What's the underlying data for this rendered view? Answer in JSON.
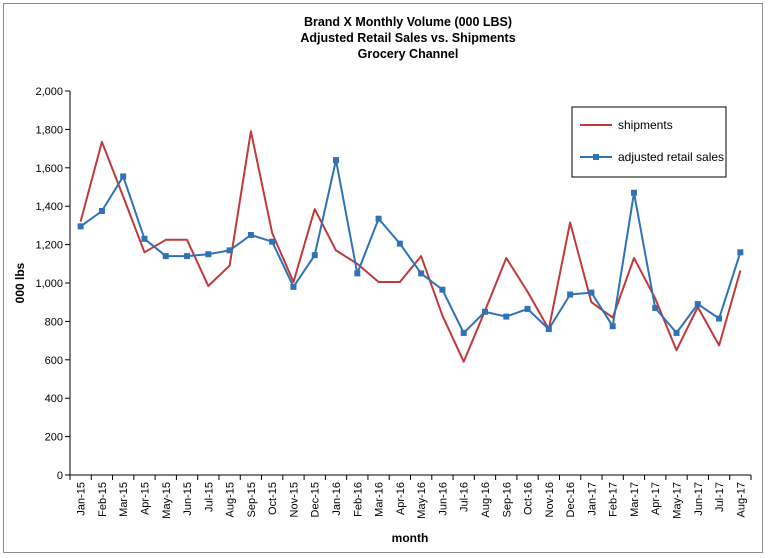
{
  "chart_data": {
    "type": "line",
    "title": [
      "Brand X Monthly Volume (000 LBS)",
      "Adjusted Retail Sales vs. Shipments",
      "Grocery Channel"
    ],
    "xlabel": "month",
    "ylabel": "000 lbs",
    "ylim": [
      0,
      2000
    ],
    "yticks": [
      "0",
      "200",
      "400",
      "600",
      "800",
      "1,000",
      "1,200",
      "1,400",
      "1,600",
      "1,800",
      "2,000"
    ],
    "grid": false,
    "legend_position": "top-right",
    "categories": [
      "Jan-15",
      "Feb-15",
      "Mar-15",
      "Apr-15",
      "May-15",
      "Jun-15",
      "Jul-15",
      "Aug-15",
      "Sep-15",
      "Oct-15",
      "Nov-15",
      "Dec-15",
      "Jan-16",
      "Feb-16",
      "Mar-16",
      "Apr-16",
      "May-16",
      "Jun-16",
      "Jul-16",
      "Aug-16",
      "Sep-16",
      "Oct-16",
      "Nov-16",
      "Dec-16",
      "Jan-17",
      "Feb-17",
      "Mar-17",
      "Apr-17",
      "May-17",
      "Jun-17",
      "Jul-17",
      "Aug-17"
    ],
    "series": [
      {
        "name": "shipments",
        "color": "#c0393b",
        "marker": "none",
        "values": [
          1320,
          1735,
          1450,
          1160,
          1225,
          1225,
          985,
          1090,
          1790,
          1260,
          1005,
          1385,
          1170,
          1100,
          1005,
          1005,
          1140,
          830,
          590,
          855,
          1130,
          955,
          760,
          1315,
          900,
          820,
          1130,
          920,
          650,
          875,
          675,
          1065
        ]
      },
      {
        "name": "adjusted retail sales",
        "color": "#2f72b5",
        "marker": "square",
        "values": [
          1295,
          1375,
          1555,
          1230,
          1140,
          1140,
          1150,
          1170,
          1250,
          1215,
          980,
          1145,
          1640,
          1050,
          1335,
          1205,
          1050,
          965,
          740,
          850,
          825,
          865,
          760,
          940,
          950,
          775,
          1470,
          870,
          740,
          890,
          815,
          1160
        ]
      }
    ]
  }
}
